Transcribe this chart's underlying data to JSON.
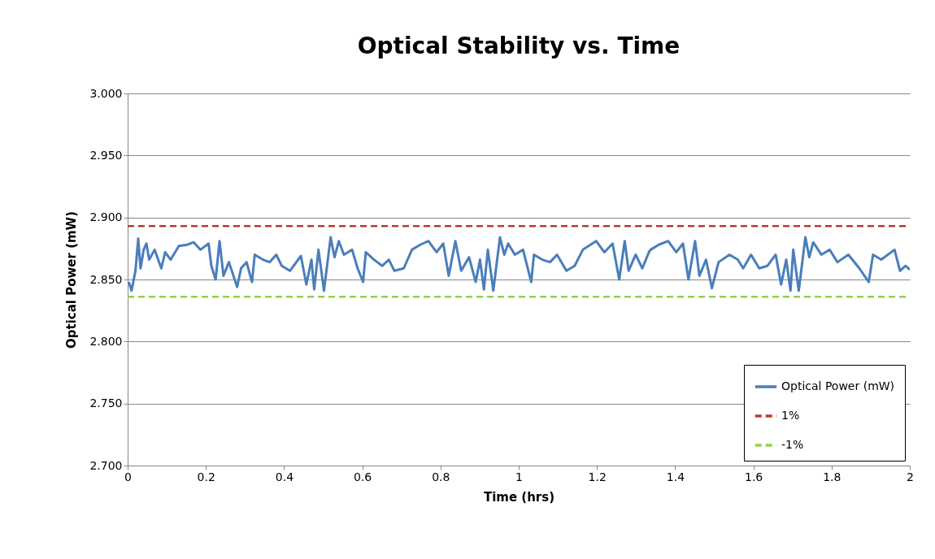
{
  "chart_data": {
    "type": "line",
    "title": "Optical Stability vs. Time",
    "xlabel": "Time (hrs)",
    "ylabel": "Optical Power (mW)",
    "xlim": [
      0,
      2
    ],
    "xticks": [
      0,
      0.2,
      0.4,
      0.6,
      0.8,
      1,
      1.2,
      1.4,
      1.6,
      1.8,
      2
    ],
    "ylim": [
      2.7,
      3.0
    ],
    "yticks": [
      {
        "value": 2.7,
        "label": "2.700"
      },
      {
        "value": 2.75,
        "label": "2.750"
      },
      {
        "value": 2.8,
        "label": "2.800"
      },
      {
        "value": 2.85,
        "label": "2.850"
      },
      {
        "value": 2.9,
        "label": "2.900"
      },
      {
        "value": 2.95,
        "label": "2.950"
      },
      {
        "value": 3.0,
        "label": "3.000"
      }
    ],
    "grid": "y",
    "legend": "bottom right",
    "series": [
      {
        "name": "Optical Power (mW)",
        "color": "#4a7ebb",
        "line_style": "solid",
        "x": [
          0.003,
          0.01,
          0.02,
          0.027,
          0.033,
          0.041,
          0.048,
          0.055,
          0.069,
          0.086,
          0.096,
          0.11,
          0.131,
          0.152,
          0.169,
          0.186,
          0.207,
          0.214,
          0.225,
          0.235,
          0.245,
          0.259,
          0.28,
          0.29,
          0.304,
          0.318,
          0.325,
          0.346,
          0.363,
          0.38,
          0.394,
          0.415,
          0.443,
          0.457,
          0.47,
          0.477,
          0.488,
          0.502,
          0.519,
          0.529,
          0.54,
          0.553,
          0.574,
          0.588,
          0.602,
          0.609,
          0.63,
          0.651,
          0.668,
          0.682,
          0.706,
          0.727,
          0.748,
          0.769,
          0.79,
          0.807,
          0.821,
          0.838,
          0.853,
          0.873,
          0.89,
          0.901,
          0.911,
          0.921,
          0.935,
          0.952,
          0.963,
          0.973,
          0.99,
          1.011,
          1.032,
          1.039,
          1.06,
          1.08,
          1.098,
          1.122,
          1.143,
          1.164,
          1.198,
          1.219,
          1.24,
          1.257,
          1.271,
          1.281,
          1.299,
          1.316,
          1.333,
          1.337,
          1.358,
          1.382,
          1.403,
          1.42,
          1.434,
          1.451,
          1.462,
          1.479,
          1.494,
          1.511,
          1.539,
          1.56,
          1.574,
          1.594,
          1.615,
          1.636,
          1.657,
          1.671,
          1.684,
          1.695,
          1.702,
          1.716,
          1.733,
          1.743,
          1.753,
          1.774,
          1.795,
          1.815,
          1.843,
          1.871,
          1.895,
          1.906,
          1.927,
          1.961,
          1.975,
          1.989,
          2.0
        ],
        "values": [
          2.848,
          2.841,
          2.857,
          2.883,
          2.859,
          2.874,
          2.879,
          2.866,
          2.874,
          2.859,
          2.872,
          2.866,
          2.877,
          2.878,
          2.88,
          2.874,
          2.879,
          2.861,
          2.85,
          2.881,
          2.853,
          2.864,
          2.844,
          2.859,
          2.864,
          2.848,
          2.87,
          2.866,
          2.864,
          2.87,
          2.861,
          2.857,
          2.869,
          2.846,
          2.866,
          2.842,
          2.874,
          2.841,
          2.884,
          2.868,
          2.881,
          2.87,
          2.874,
          2.859,
          2.848,
          2.872,
          2.866,
          2.861,
          2.866,
          2.857,
          2.859,
          2.874,
          2.878,
          2.881,
          2.872,
          2.879,
          2.853,
          2.881,
          2.857,
          2.868,
          2.848,
          2.866,
          2.842,
          2.874,
          2.841,
          2.884,
          2.87,
          2.879,
          2.87,
          2.874,
          2.848,
          2.87,
          2.866,
          2.864,
          2.87,
          2.857,
          2.861,
          2.874,
          2.881,
          2.872,
          2.879,
          2.85,
          2.881,
          2.857,
          2.87,
          2.859,
          2.872,
          2.874,
          2.878,
          2.881,
          2.872,
          2.879,
          2.85,
          2.881,
          2.853,
          2.866,
          2.843,
          2.864,
          2.87,
          2.866,
          2.859,
          2.87,
          2.859,
          2.861,
          2.87,
          2.846,
          2.866,
          2.841,
          2.874,
          2.841,
          2.884,
          2.868,
          2.88,
          2.87,
          2.874,
          2.864,
          2.87,
          2.859,
          2.848,
          2.87,
          2.866,
          2.874,
          2.857,
          2.861,
          2.858
        ]
      },
      {
        "name": "1%",
        "color": "#c0392b",
        "line_style": "dashed",
        "x": [
          0,
          2
        ],
        "values": [
          2.893,
          2.893
        ]
      },
      {
        "name": "-1%",
        "color": "#92d050",
        "line_style": "dashed",
        "x": [
          0,
          2
        ],
        "values": [
          2.836,
          2.836
        ]
      }
    ]
  }
}
